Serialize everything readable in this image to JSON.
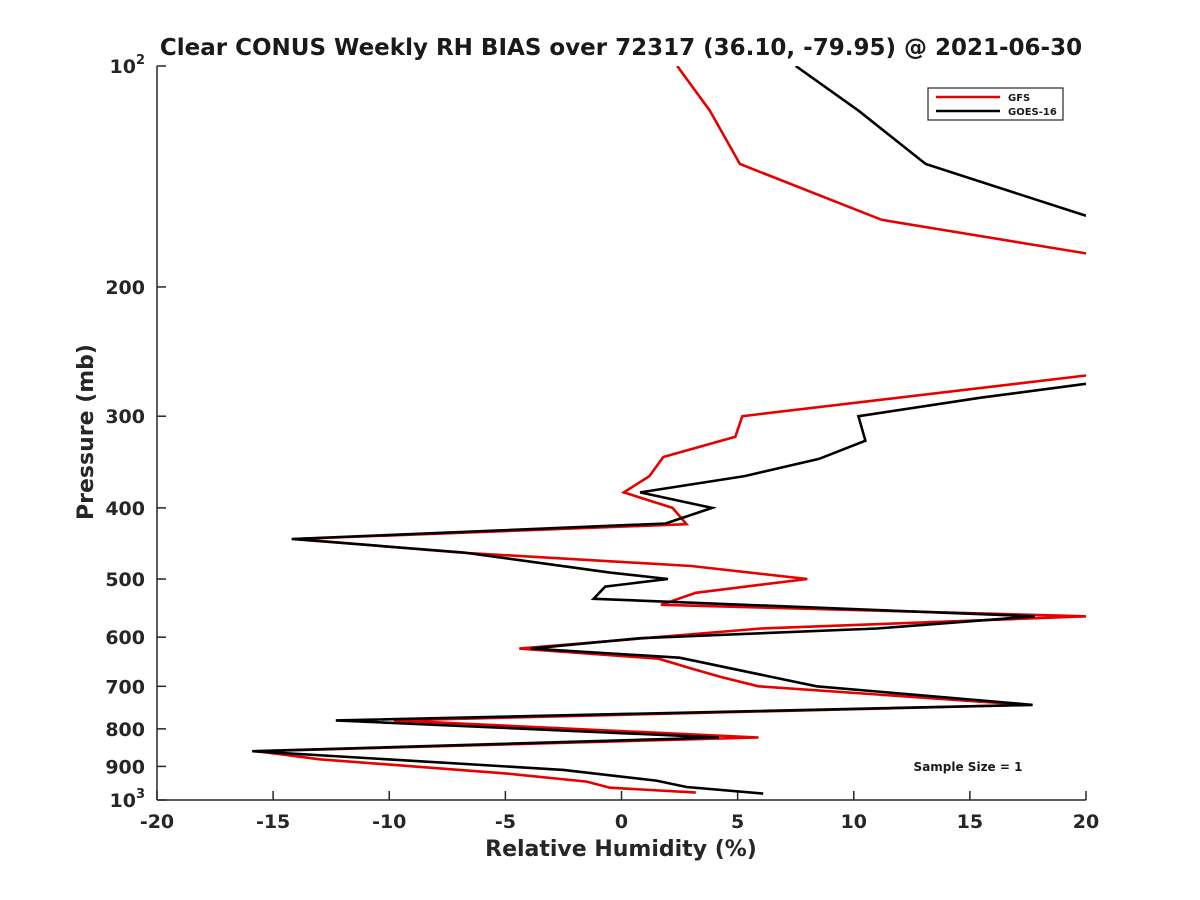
{
  "chart_data": {
    "type": "line",
    "title": "Clear CONUS Weekly RH BIAS over 72317 (36.10, -79.95) @ 2021-06-30",
    "xlabel": "Relative Humidity (%)",
    "ylabel": "Pressure (mb)",
    "xlim": [
      -20,
      20
    ],
    "ylim": [
      100,
      1000
    ],
    "y_scale": "log",
    "y_reversed": true,
    "x_ticks": [
      "-20",
      "-15",
      "-10",
      "-5",
      "0",
      "5",
      "10",
      "15",
      "20"
    ],
    "y_ticks": [
      {
        "value": 100,
        "base": "10",
        "sup": "2"
      },
      {
        "value": 200,
        "base": "200",
        "sup": ""
      },
      {
        "value": 300,
        "base": "300",
        "sup": ""
      },
      {
        "value": 400,
        "base": "400",
        "sup": ""
      },
      {
        "value": 500,
        "base": "500",
        "sup": ""
      },
      {
        "value": 600,
        "base": "600",
        "sup": ""
      },
      {
        "value": 700,
        "base": "700",
        "sup": ""
      },
      {
        "value": 800,
        "base": "800",
        "sup": ""
      },
      {
        "value": 900,
        "base": "900",
        "sup": ""
      },
      {
        "value": 1000,
        "base": "10",
        "sup": "3"
      }
    ],
    "grid": false,
    "legend_position": "top-right",
    "annotation": "Sample Size = 1",
    "series": [
      {
        "name": "GFS",
        "color": "#e60000",
        "segments": [
          [
            [
              2.4,
              100
            ],
            [
              3.8,
              115
            ],
            [
              5.1,
              136
            ],
            [
              11.2,
              162
            ],
            [
              20,
              180
            ]
          ],
          [
            [
              20,
              264
            ],
            [
              5.2,
              300
            ],
            [
              4.9,
              320
            ],
            [
              1.8,
              341
            ],
            [
              1.2,
              362
            ],
            [
              0.1,
              381
            ],
            [
              2.2,
              400
            ],
            [
              2.8,
              421
            ],
            [
              -14,
              441
            ],
            [
              -7,
              460
            ],
            [
              3,
              480
            ],
            [
              8.0,
              500
            ],
            [
              3.2,
              522
            ],
            [
              1.7,
              542
            ],
            [
              20,
              562
            ],
            [
              6,
              584
            ],
            [
              -4.4,
              622
            ],
            [
              1.6,
              642
            ],
            [
              3.0,
              662
            ],
            [
              4.3,
              680
            ],
            [
              5.9,
              700
            ],
            [
              17.5,
              742
            ],
            [
              -9.8,
              779
            ],
            [
              5.9,
              822
            ],
            [
              -15.7,
              858
            ],
            [
              -13,
              880
            ],
            [
              -5,
              920
            ],
            [
              -1.5,
              944
            ],
            [
              -0.5,
              962
            ],
            [
              3.2,
              977
            ]
          ]
        ]
      },
      {
        "name": "GOES-16",
        "color": "#000000",
        "segments": [
          [
            [
              7.5,
              100
            ],
            [
              10.2,
              115
            ],
            [
              13.1,
              136
            ],
            [
              20,
              160
            ]
          ],
          [
            [
              20,
              271
            ],
            [
              15.5,
              283
            ],
            [
              10.2,
              300
            ],
            [
              10.5,
              324
            ],
            [
              8.5,
              343
            ],
            [
              5.3,
              362
            ],
            [
              0.8,
              381
            ],
            [
              3.9,
              400
            ],
            [
              1.9,
              420
            ],
            [
              -14.2,
              441
            ],
            [
              -6.8,
              460
            ],
            [
              -0.5,
              490
            ],
            [
              2.0,
              500
            ],
            [
              -0.7,
              512
            ],
            [
              -1.2,
              532
            ],
            [
              17.8,
              562
            ],
            [
              11,
              584
            ],
            [
              0.8,
              602
            ],
            [
              -3.9,
              622
            ],
            [
              2.5,
              640
            ],
            [
              6.4,
              679
            ],
            [
              8.4,
              700
            ],
            [
              17.7,
              742
            ],
            [
              -12.3,
              779
            ],
            [
              4.2,
              822
            ],
            [
              -15.9,
              858
            ],
            [
              -2.5,
              910
            ],
            [
              1.5,
              941
            ],
            [
              2.8,
              960
            ],
            [
              6.1,
              980
            ]
          ]
        ]
      }
    ]
  }
}
